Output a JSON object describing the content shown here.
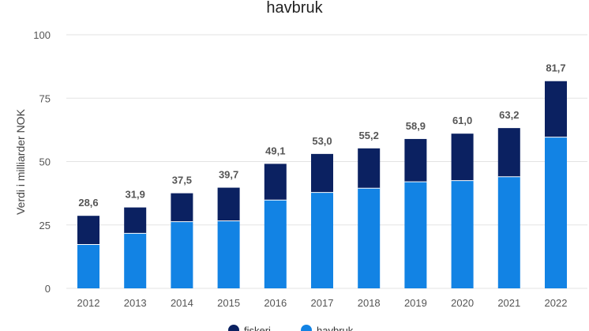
{
  "chart_data": {
    "type": "bar",
    "stacked": true,
    "title": "havbruk",
    "xlabel": "",
    "ylabel": "Verdi i milliarder NOK",
    "ylim": [
      0,
      100
    ],
    "yticks": [
      0,
      25,
      50,
      75,
      100
    ],
    "grid": true,
    "legend_position": "bottom",
    "categories": [
      "2012",
      "2013",
      "2014",
      "2015",
      "2016",
      "2017",
      "2018",
      "2019",
      "2020",
      "2021",
      "2022"
    ],
    "series": [
      {
        "name": "havbruk",
        "color": "#1283e4",
        "values": [
          17.3,
          21.7,
          26.3,
          26.6,
          34.8,
          37.8,
          39.5,
          42.0,
          42.5,
          44.0,
          59.6
        ]
      },
      {
        "name": "fiskeri",
        "color": "#0b2161",
        "values": [
          11.3,
          10.2,
          11.2,
          13.1,
          14.3,
          15.2,
          15.7,
          16.9,
          18.5,
          19.2,
          22.1
        ]
      }
    ],
    "totals_labels": [
      "28,6",
      "31,9",
      "37,5",
      "39,7",
      "49,1",
      "53,0",
      "55,2",
      "58,9",
      "61,0",
      "63,2",
      "81,7"
    ],
    "totals": [
      28.6,
      31.9,
      37.5,
      39.7,
      49.1,
      53.0,
      55.2,
      58.9,
      61.0,
      63.2,
      81.7
    ]
  }
}
